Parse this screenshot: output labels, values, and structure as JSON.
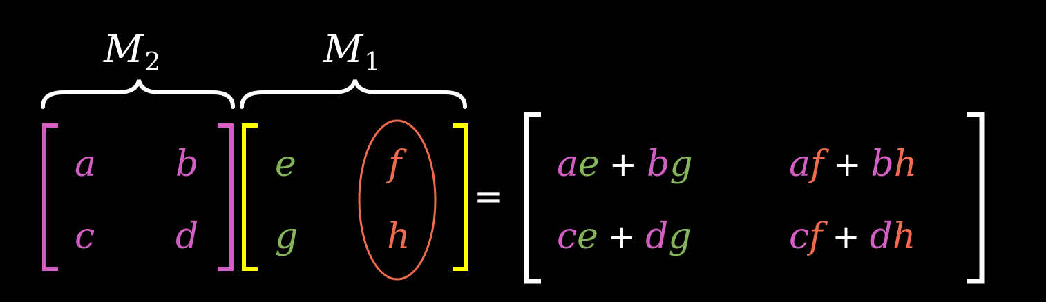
{
  "colors": {
    "background": "#000000",
    "m2": "#d35fc4",
    "m1_green": "#86b45a",
    "m1_red": "#f06a4f",
    "m1_bracket": "#ffff00",
    "white": "#ffffff"
  },
  "labels": {
    "m2": "M",
    "m2_sub": "2",
    "m1": "M",
    "m1_sub": "1"
  },
  "matrix_m2": {
    "a": "a",
    "b": "b",
    "c": "c",
    "d": "d"
  },
  "matrix_m1": {
    "e": "e",
    "f": "f",
    "g": "g",
    "h": "h"
  },
  "equals": "=",
  "result": {
    "r0c0": [
      "a",
      "e",
      "+",
      "b",
      "g"
    ],
    "r0c1": [
      "a",
      "f",
      "+",
      "b",
      "h"
    ],
    "r1c0": [
      "c",
      "e",
      "+",
      "d",
      "g"
    ],
    "r1c1": [
      "c",
      "f",
      "+",
      "d",
      "h"
    ]
  }
}
